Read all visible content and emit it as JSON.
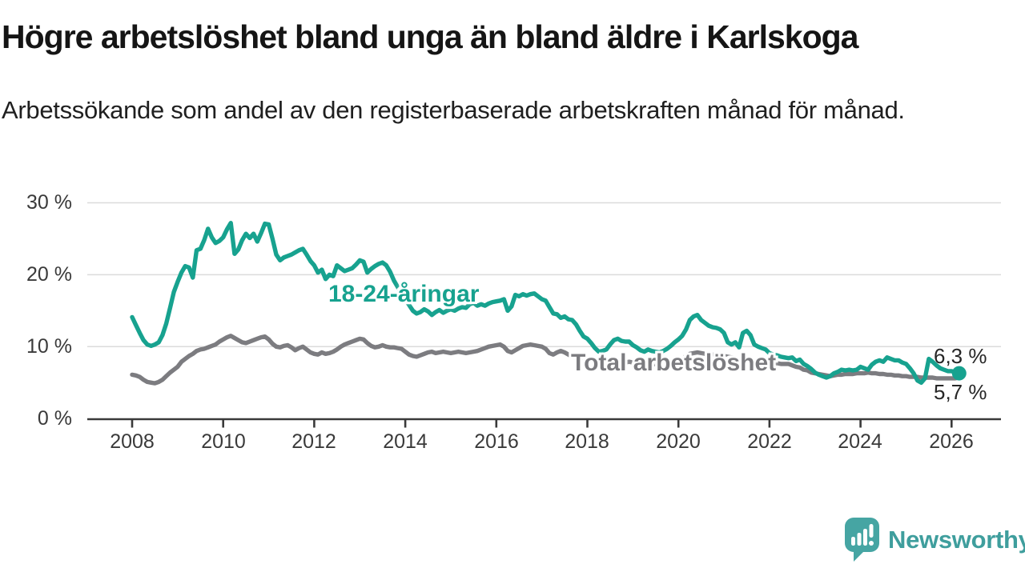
{
  "header": {
    "title": "Högre arbetslöshet bland unga än bland äldre i Karlskoga",
    "subtitle": "Arbetssökande som andel av den registerbaserade arbetskraften månad för månad."
  },
  "chart": {
    "series_labels": {
      "youth": "18-24-åringar",
      "total": "Total arbetslöshet"
    },
    "end_labels": {
      "youth": "6,3 %",
      "total": "5,7 %"
    },
    "y_tick_labels": [
      "30 %",
      "20 %",
      "10 %",
      "0 %"
    ],
    "x_tick_labels": [
      "2008",
      "2010",
      "2012",
      "2014",
      "2016",
      "2018",
      "2020",
      "2022",
      "2024",
      "2026"
    ]
  },
  "colors": {
    "youth": "#17a28f",
    "total": "#7c7c80",
    "grid": "#dbdbdb",
    "axis": "#3a3a3a",
    "logo": "#46a5a3",
    "logo_text": "#3f9e9d"
  },
  "footer": {
    "brand": "Newsworthy"
  },
  "chart_data": {
    "type": "line",
    "title": "Högre arbetslöshet bland unga än bland äldre i Karlskoga",
    "subtitle": "Arbetssökande som andel av den registerbaserade arbetskraften månad för månad.",
    "x_unit": "month",
    "x_start": "2008-01",
    "x_end": "2026-03",
    "ylim": [
      0,
      30
    ],
    "y_ticks": [
      0,
      10,
      20,
      30
    ],
    "x_ticks": [
      2008,
      2010,
      2012,
      2014,
      2016,
      2018,
      2020,
      2022,
      2024,
      2026
    ],
    "grid": "horizontal",
    "legend_position": "inline-labels",
    "end_values": {
      "youth": 6.3,
      "total": 5.7
    },
    "series": [
      {
        "name": "18-24-åringar",
        "color": "#17a28f",
        "values": [
          14.1,
          13.0,
          11.9,
          10.9,
          10.3,
          10.1,
          10.3,
          10.6,
          11.6,
          13.2,
          15.4,
          17.6,
          19.0,
          20.3,
          21.2,
          21.0,
          19.6,
          23.4,
          23.6,
          24.8,
          26.4,
          25.2,
          24.4,
          24.7,
          25.2,
          26.3,
          27.2,
          22.9,
          23.5,
          24.8,
          25.7,
          25.1,
          25.7,
          24.6,
          25.8,
          27.1,
          27.0,
          25.0,
          22.8,
          22.0,
          22.4,
          22.6,
          22.8,
          23.1,
          23.4,
          23.6,
          22.8,
          21.9,
          21.3,
          20.3,
          20.7,
          19.4,
          20.0,
          19.8,
          21.3,
          20.9,
          20.5,
          20.7,
          20.9,
          21.4,
          22.0,
          21.8,
          20.3,
          20.8,
          21.2,
          21.5,
          21.7,
          21.3,
          20.4,
          19.2,
          18.3,
          17.4,
          16.6,
          15.8,
          15.0,
          14.6,
          14.8,
          15.2,
          14.9,
          14.4,
          14.8,
          15.1,
          14.7,
          15.0,
          15.2,
          15.0,
          15.3,
          15.5,
          15.4,
          15.9,
          16.1,
          15.7,
          15.9,
          15.7,
          16.0,
          16.2,
          16.3,
          16.4,
          16.6,
          15.0,
          15.6,
          17.2,
          17.0,
          17.3,
          17.1,
          17.3,
          17.4,
          17.0,
          16.6,
          16.4,
          15.5,
          14.6,
          14.5,
          14.0,
          14.2,
          13.8,
          13.7,
          13.1,
          12.2,
          11.4,
          11.1,
          10.5,
          9.8,
          9.3,
          9.4,
          9.6,
          10.3,
          10.9,
          11.1,
          10.8,
          10.7,
          10.7,
          10.2,
          9.9,
          9.5,
          9.3,
          9.6,
          9.4,
          9.3,
          9.2,
          9.4,
          9.7,
          10.1,
          10.6,
          11.0,
          11.5,
          12.4,
          13.7,
          14.2,
          14.4,
          13.7,
          13.3,
          12.9,
          12.7,
          12.6,
          12.4,
          11.9,
          10.6,
          10.3,
          10.6,
          9.9,
          11.9,
          12.2,
          11.6,
          10.3,
          10.0,
          9.8,
          9.6,
          9.1,
          8.9,
          8.8,
          8.6,
          8.5,
          8.4,
          8.5,
          8.0,
          8.2,
          7.6,
          7.3,
          6.9,
          6.4,
          6.1,
          5.9,
          5.7,
          5.9,
          6.3,
          6.5,
          6.8,
          6.7,
          6.8,
          6.7,
          6.8,
          7.2,
          7.0,
          6.8,
          7.5,
          7.9,
          8.1,
          7.9,
          8.5,
          8.3,
          8.1,
          8.1,
          7.8,
          7.6,
          7.0,
          6.3,
          5.3,
          5.0,
          5.6,
          8.3,
          7.9,
          7.4,
          7.0,
          6.8,
          6.6,
          6.6,
          6.4,
          6.3
        ]
      },
      {
        "name": "Total arbetslöshet",
        "color": "#7c7c80",
        "values": [
          6.1,
          6.0,
          5.8,
          5.4,
          5.1,
          5.0,
          4.9,
          5.1,
          5.4,
          5.9,
          6.4,
          6.8,
          7.2,
          7.9,
          8.3,
          8.7,
          9.0,
          9.4,
          9.6,
          9.7,
          9.9,
          10.1,
          10.3,
          10.7,
          11.0,
          11.3,
          11.5,
          11.2,
          10.9,
          10.6,
          10.5,
          10.7,
          10.9,
          11.1,
          11.3,
          11.4,
          11.0,
          10.4,
          10.0,
          9.9,
          10.1,
          10.2,
          9.9,
          9.5,
          9.8,
          10.0,
          9.6,
          9.2,
          9.0,
          8.9,
          9.2,
          9.0,
          9.1,
          9.3,
          9.6,
          10.0,
          10.3,
          10.5,
          10.7,
          10.9,
          11.1,
          11.0,
          10.5,
          10.1,
          9.9,
          10.0,
          10.2,
          10.0,
          9.9,
          9.9,
          9.8,
          9.7,
          9.3,
          8.9,
          8.7,
          8.6,
          8.8,
          9.0,
          9.2,
          9.3,
          9.1,
          9.2,
          9.3,
          9.2,
          9.1,
          9.2,
          9.3,
          9.2,
          9.1,
          9.2,
          9.3,
          9.4,
          9.6,
          9.8,
          10.0,
          10.1,
          10.2,
          10.3,
          10.0,
          9.4,
          9.2,
          9.5,
          9.8,
          10.1,
          10.2,
          10.3,
          10.2,
          10.1,
          10.0,
          9.7,
          9.1,
          8.9,
          9.2,
          9.4,
          9.2,
          8.9,
          8.6,
          8.5,
          8.4,
          8.3,
          8.2,
          8.1,
          8.0,
          7.9,
          7.8,
          7.8,
          7.9,
          8.0,
          7.9,
          7.8,
          7.8,
          7.9,
          7.8,
          7.7,
          7.6,
          7.6,
          7.5,
          7.5,
          7.6,
          7.6,
          7.5,
          7.6,
          7.7,
          7.9,
          8.1,
          8.3,
          8.7,
          9.0,
          9.1,
          9.2,
          9.1,
          9.0,
          8.9,
          8.9,
          8.8,
          8.8,
          8.7,
          8.6,
          8.5,
          8.4,
          8.3,
          8.3,
          8.2,
          8.1,
          8.0,
          7.9,
          7.8,
          7.8,
          7.8,
          7.7,
          7.7,
          7.6,
          7.6,
          7.6,
          7.4,
          7.2,
          7.1,
          6.8,
          6.7,
          6.4,
          6.3,
          6.2,
          6.1,
          6.0,
          5.9,
          6.0,
          6.1,
          6.1,
          6.2,
          6.2,
          6.2,
          6.3,
          6.3,
          6.3,
          6.4,
          6.3,
          6.3,
          6.2,
          6.2,
          6.1,
          6.1,
          6.0,
          6.0,
          5.9,
          5.9,
          5.8,
          5.8,
          5.8,
          5.7,
          5.7,
          5.7,
          5.7,
          5.6,
          5.6,
          5.6,
          5.6,
          5.6,
          5.6,
          5.7
        ]
      }
    ]
  }
}
